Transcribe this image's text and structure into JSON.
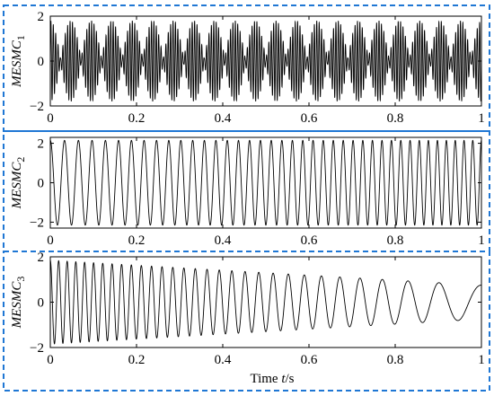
{
  "colors": {
    "frame_dash": "#1f77d4",
    "signal": "#000000",
    "axes": "#000000"
  },
  "chart_data": [
    {
      "type": "line",
      "ylabel": "MESMC",
      "ylabel_subscript": "1",
      "xlabel": "",
      "xlim": [
        0,
        1
      ],
      "ylim": [
        -2,
        2
      ],
      "xticks": [
        0,
        0.2,
        0.4,
        0.6,
        0.8,
        1
      ],
      "xtick_labels": [
        "0",
        "0.2",
        "0.4",
        "0.6",
        "0.8",
        "1"
      ],
      "yticks": [
        -2,
        0,
        2
      ],
      "ytick_labels": [
        "−2",
        "0",
        "2"
      ],
      "grid": false,
      "signal": {
        "description": "amplitude-modulated oscillation",
        "carrier_frequency_hz": 180,
        "modulation_frequency_hz": 21,
        "peak_amplitude": 1.8,
        "envelope_min": 0.1
      }
    },
    {
      "type": "line",
      "ylabel": "MESMC",
      "ylabel_subscript": "2",
      "xlabel": "",
      "xlim": [
        0,
        1
      ],
      "ylim": [
        -2.3,
        2.3
      ],
      "xticks": [
        0,
        0.2,
        0.4,
        0.6,
        0.8,
        1
      ],
      "xtick_labels": [
        "0",
        "0.2",
        "0.4",
        "0.6",
        "0.8",
        "1"
      ],
      "yticks": [
        -2,
        0,
        2
      ],
      "ytick_labels": [
        "−2",
        "0",
        "2"
      ],
      "grid": false,
      "signal": {
        "description": "chirp with increasing frequency",
        "amplitude": 2.15,
        "start_frequency_hz": 30,
        "end_frequency_hz": 50
      }
    },
    {
      "type": "line",
      "ylabel": "MESMC",
      "ylabel_subscript": "3",
      "xlabel": "Time t/s",
      "xlabel_parts": [
        "Time ",
        "t",
        "/s"
      ],
      "xlim": [
        0,
        1
      ],
      "ylim": [
        -2,
        2
      ],
      "xticks": [
        0,
        0.2,
        0.4,
        0.6,
        0.8,
        1
      ],
      "xtick_labels": [
        "0",
        "0.2",
        "0.4",
        "0.6",
        "0.8",
        "1"
      ],
      "yticks": [
        -2,
        0,
        2
      ],
      "ytick_labels": [
        "−2",
        "0",
        "2"
      ],
      "grid": false,
      "signal": {
        "description": "decaying chirp with decreasing frequency",
        "start_amplitude": 1.85,
        "end_amplitude": 0.75,
        "start_frequency_hz": 52,
        "end_frequency_hz": 8
      }
    }
  ]
}
